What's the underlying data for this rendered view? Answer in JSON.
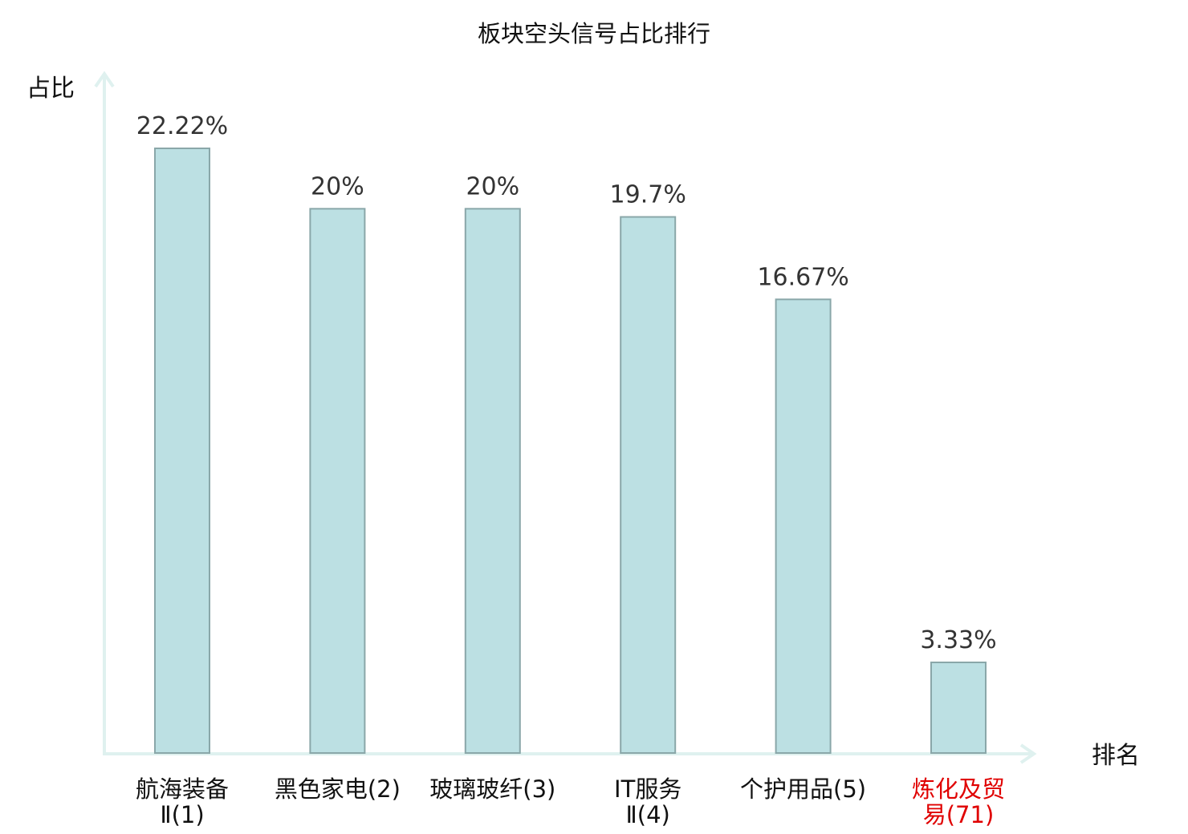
{
  "chart_data": {
    "type": "bar",
    "title": "板块空头信号占比排行",
    "ylabel": "占比",
    "xlabel": "排名",
    "categories": [
      {
        "lines": [
          "航海装备",
          "Ⅱ(1)"
        ],
        "highlight": false
      },
      {
        "lines": [
          "黑色家电(2)"
        ],
        "highlight": false
      },
      {
        "lines": [
          "玻璃玻纤(3)"
        ],
        "highlight": false
      },
      {
        "lines": [
          "IT服务",
          "Ⅱ(4)"
        ],
        "highlight": false
      },
      {
        "lines": [
          "个护用品(5)"
        ],
        "highlight": false
      },
      {
        "lines": [
          "炼化及贸",
          "易(71)"
        ],
        "highlight": true
      }
    ],
    "values": [
      22.22,
      20,
      20,
      19.7,
      16.67,
      3.33
    ],
    "value_labels": [
      "22.22%",
      "20%",
      "20%",
      "19.7%",
      "16.67%",
      "3.33%"
    ],
    "ylim": [
      0,
      25
    ],
    "grid": false,
    "legend": "none"
  },
  "colors": {
    "bar_fill": "#bce0e3",
    "bar_stroke": "#8aa7a9",
    "axis": "#dff1ef",
    "highlight_text": "#e00000",
    "text": "#111111"
  }
}
